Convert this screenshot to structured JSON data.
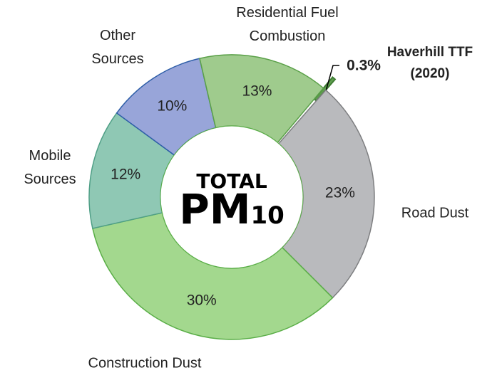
{
  "chart_data": {
    "type": "donut",
    "categories": [
      "Haverhill TTF (2020)",
      "Road Dust",
      "Construction Dust",
      "Mobile Sources",
      "Other Sources",
      "Residential Fuel Combustion"
    ],
    "values": [
      0.3,
      23,
      30,
      12,
      10,
      13
    ],
    "value_labels": [
      "0.3%",
      "23%",
      "30%",
      "12%",
      "10%",
      "13%"
    ],
    "colors": [
      "#5f9e4f",
      "#b9babd",
      "#a3d88e",
      "#8fc8b4",
      "#98a5d9",
      "#9fcb8d"
    ],
    "center_text": {
      "line1": "TOTAL",
      "main": "PM",
      "subscript": "10"
    }
  }
}
